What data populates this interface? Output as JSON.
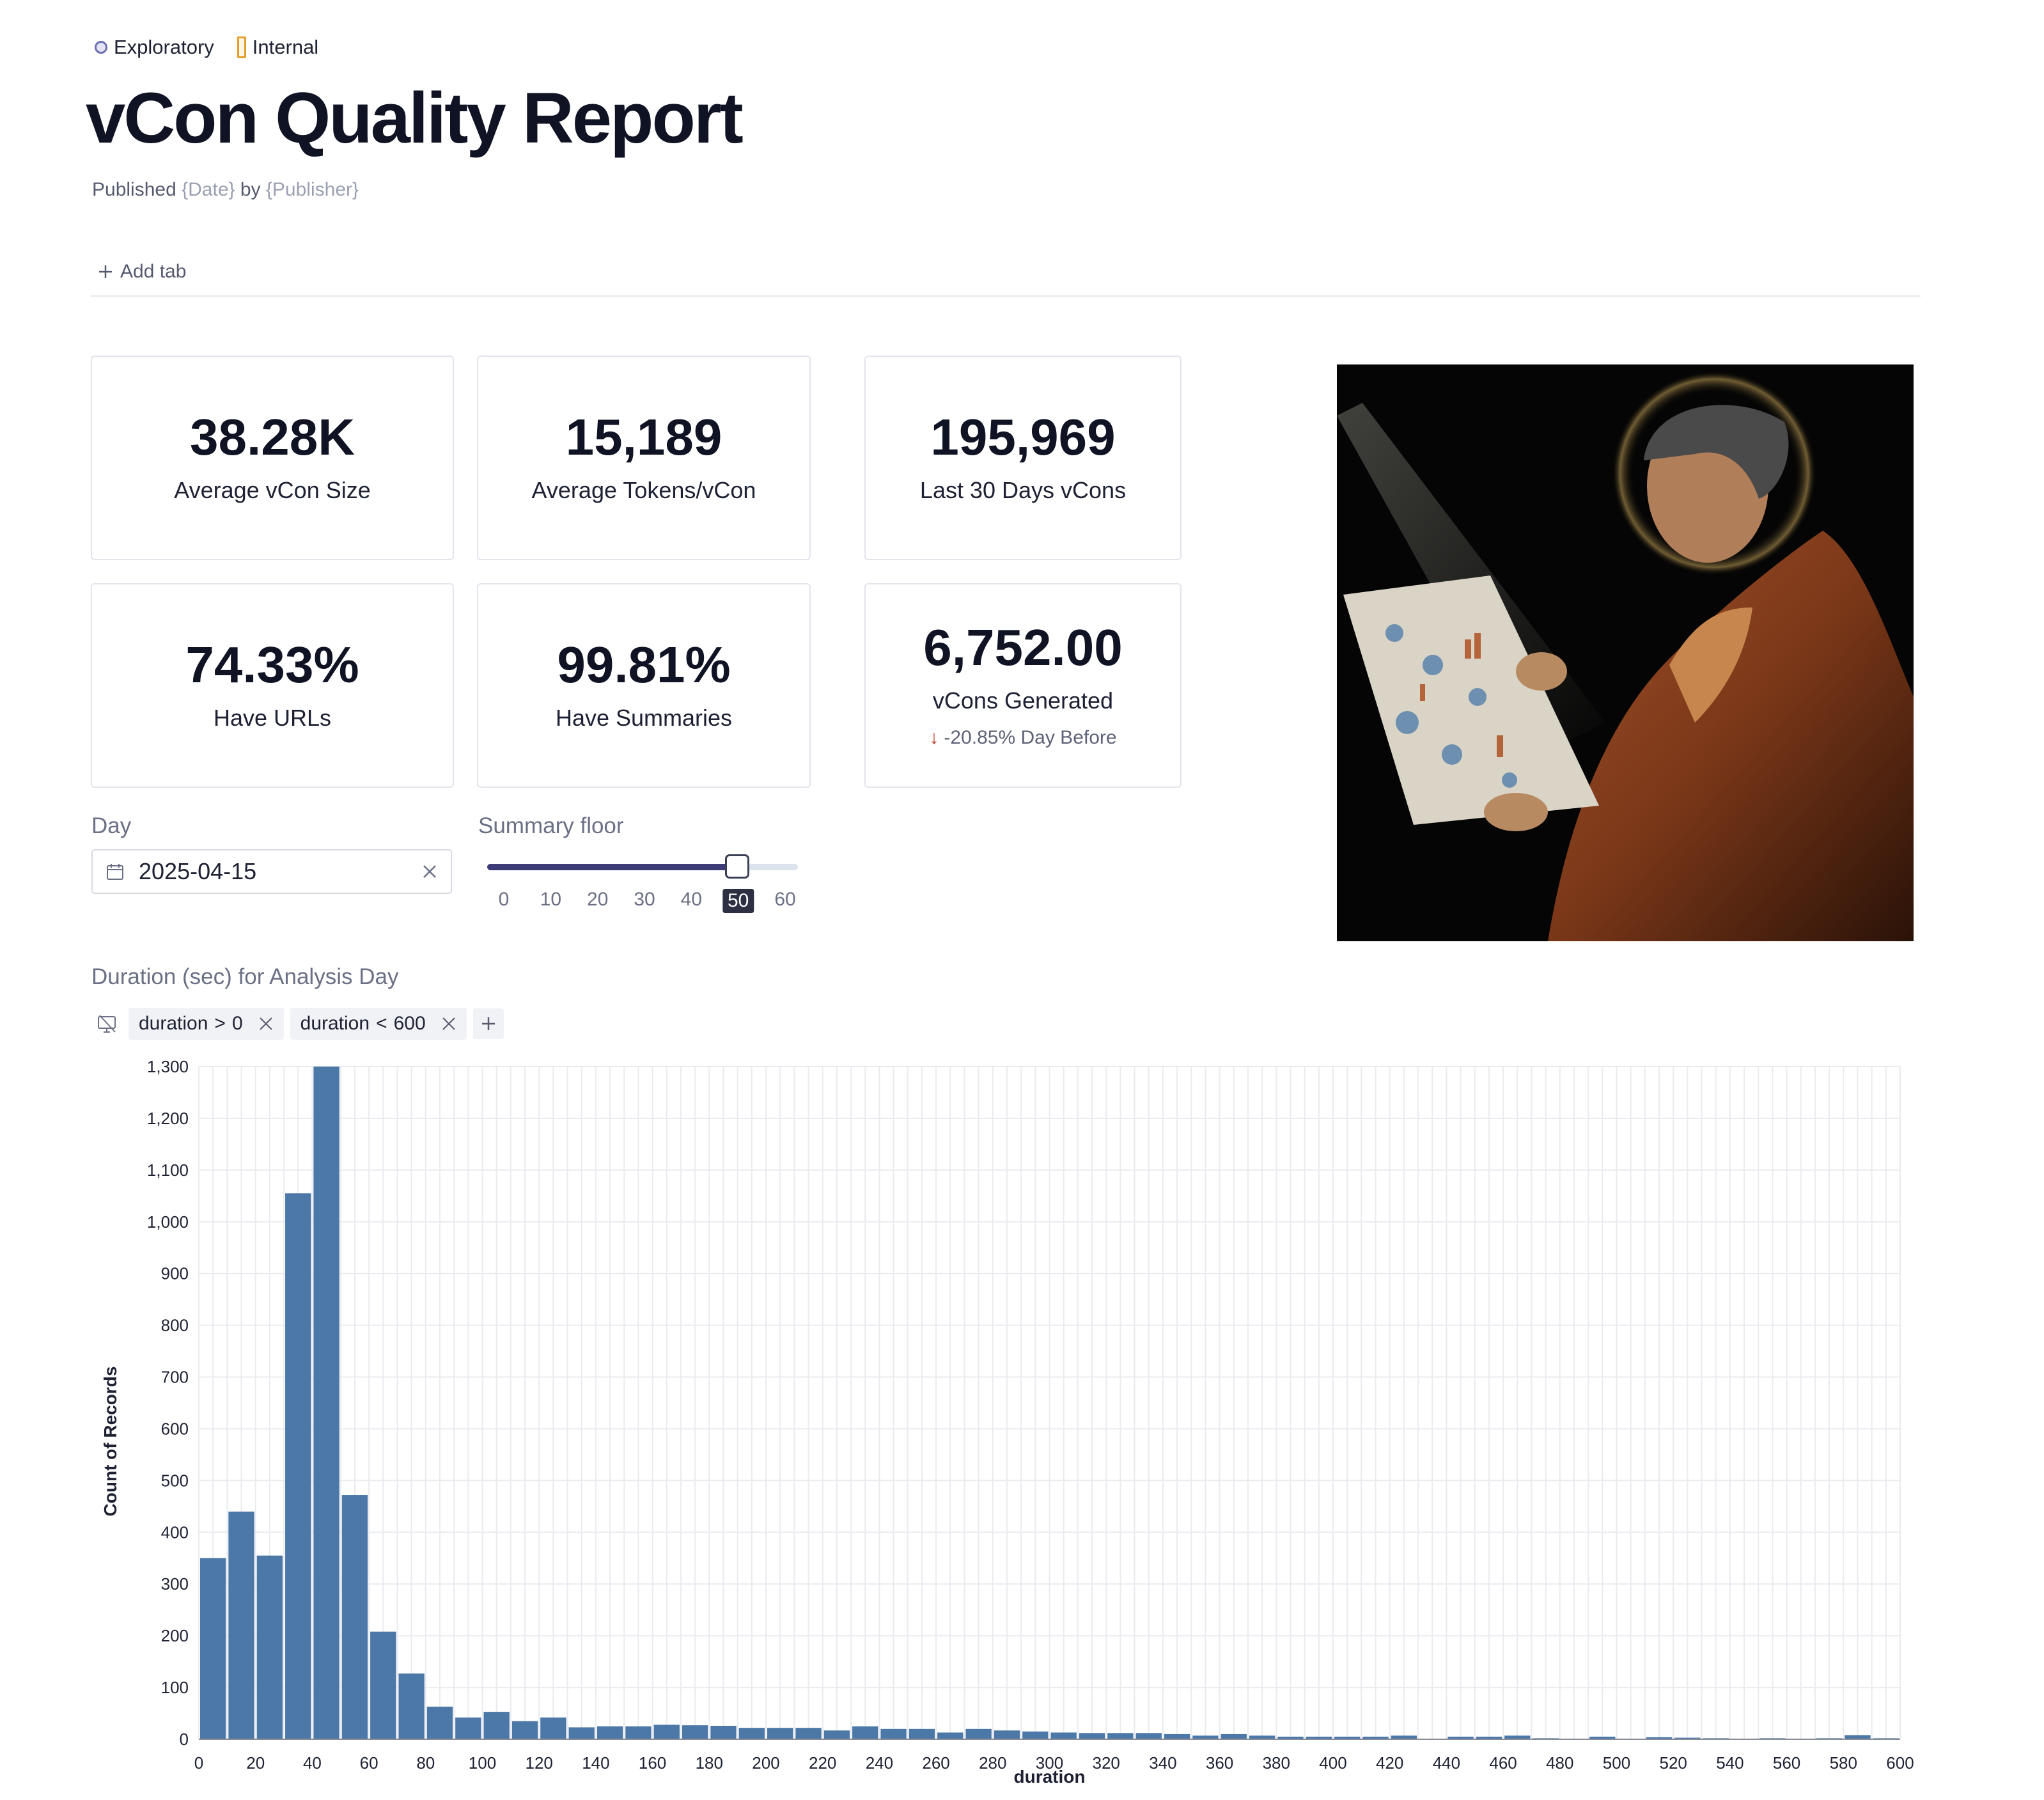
{
  "tags": [
    {
      "label": "Exploratory",
      "icon": "circle-tag-icon"
    },
    {
      "label": "Internal",
      "icon": "rect-tag-icon"
    }
  ],
  "report": {
    "title": "vCon Quality Report",
    "byline_prefix": "Published",
    "date_placeholder": "{Date}",
    "byline_by": "by",
    "publisher_placeholder": "{Publisher}",
    "add_tab": "Add tab"
  },
  "metrics": [
    {
      "value": "38.28K",
      "label": "Average vCon Size"
    },
    {
      "value": "15,189",
      "label": "Average Tokens/vCon"
    },
    {
      "value": "195,969",
      "label": "Last 30 Days vCons"
    },
    {
      "value": "74.33%",
      "label": "Have URLs"
    },
    {
      "value": "99.81%",
      "label": "Have Summaries"
    },
    {
      "value": "6,752.00",
      "label": "vCons Generated",
      "delta": "-20.85% Day Before"
    }
  ],
  "colors": {
    "accent": "#3d3b78",
    "bar": "#4c78a8",
    "delta_down": "#c0392b"
  },
  "day_input": {
    "label": "Day",
    "value": "2025-04-15"
  },
  "summary_slider": {
    "label": "Summary floor",
    "ticks": [
      "0",
      "10",
      "20",
      "30",
      "40",
      "50",
      "60"
    ],
    "value": 50,
    "min": 0,
    "max": 60
  },
  "chart_section": {
    "title": "Duration (sec) for Analysis Day",
    "filters": [
      {
        "field": "duration",
        "op": ">",
        "value": "0"
      },
      {
        "field": "duration",
        "op": "<",
        "value": "600"
      }
    ]
  },
  "chart_data": {
    "type": "bar",
    "xlabel": "duration",
    "ylabel": "Count of Records",
    "xlim": [
      0,
      600
    ],
    "ylim": [
      0,
      1300
    ],
    "bin_width": 10,
    "grid": true,
    "x_ticks": [
      "0",
      "20",
      "40",
      "60",
      "80",
      "100",
      "120",
      "140",
      "160",
      "180",
      "200",
      "220",
      "240",
      "260",
      "280",
      "300",
      "320",
      "340",
      "360",
      "380",
      "400",
      "420",
      "440",
      "460",
      "480",
      "500",
      "520",
      "540",
      "560",
      "580",
      "600"
    ],
    "y_ticks": [
      "0",
      "100",
      "200",
      "300",
      "400",
      "500",
      "600",
      "700",
      "800",
      "900",
      "1,000",
      "1,100",
      "1,200",
      "1,300"
    ],
    "bins": [
      0,
      10,
      20,
      30,
      40,
      50,
      60,
      70,
      80,
      90,
      100,
      110,
      120,
      130,
      140,
      150,
      160,
      170,
      180,
      190,
      200,
      210,
      220,
      230,
      240,
      250,
      260,
      270,
      280,
      290,
      300,
      310,
      320,
      330,
      340,
      350,
      360,
      370,
      380,
      390,
      400,
      410,
      420,
      430,
      440,
      450,
      460,
      470,
      480,
      490,
      500,
      510,
      520,
      530,
      540,
      550,
      560,
      570,
      580,
      590
    ],
    "values": [
      350,
      440,
      355,
      1055,
      1300,
      472,
      208,
      127,
      63,
      42,
      53,
      35,
      42,
      23,
      25,
      25,
      28,
      27,
      26,
      22,
      22,
      22,
      17,
      25,
      20,
      20,
      13,
      20,
      17,
      15,
      13,
      12,
      12,
      12,
      10,
      7,
      10,
      7,
      5,
      5,
      5,
      5,
      7,
      0,
      5,
      5,
      7,
      2,
      0,
      5,
      0,
      4,
      3,
      2,
      0,
      2,
      0,
      2,
      8,
      2
    ]
  }
}
